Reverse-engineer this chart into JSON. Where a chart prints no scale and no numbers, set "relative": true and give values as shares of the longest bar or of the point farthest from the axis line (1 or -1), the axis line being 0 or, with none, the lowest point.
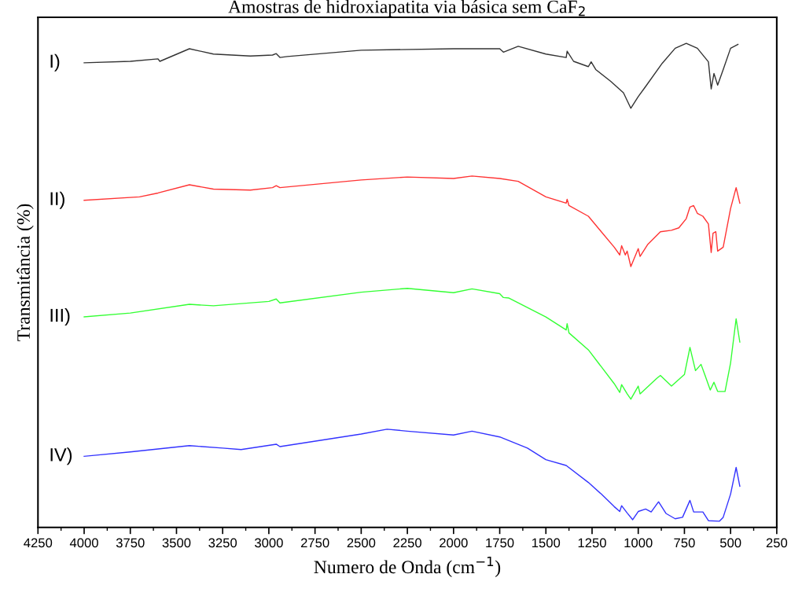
{
  "chart_data": {
    "type": "line",
    "title": "Amostras de hidroxiapatita via básica sem CaF$_{2}$",
    "xlabel": "Numero de Onda (cm$^{−1}$)",
    "ylabel": "Transmitância (%)",
    "relative": true,
    "xlim": [
      4250,
      250
    ],
    "xticks": [
      4250,
      4000,
      3750,
      3500,
      3250,
      3000,
      2750,
      2500,
      2250,
      2000,
      1750,
      1500,
      1250,
      1000,
      750,
      500,
      250
    ],
    "grid": false,
    "legend": false,
    "series": [
      {
        "name": "I)",
        "color": "#333333",
        "x": [
          4000,
          3750,
          3600,
          3590,
          3430,
          3300,
          3100,
          2980,
          2960,
          2940,
          2900,
          2500,
          2000,
          1750,
          1730,
          1650,
          1500,
          1390,
          1385,
          1350,
          1270,
          1255,
          1230,
          1150,
          1080,
          1040,
          1000,
          960,
          870,
          800,
          740,
          680,
          620,
          605,
          590,
          570,
          540,
          500,
          460
        ],
        "values": [
          0.96,
          0.963,
          0.968,
          0.963,
          0.989,
          0.978,
          0.974,
          0.976,
          0.979,
          0.971,
          0.973,
          0.986,
          0.989,
          0.989,
          0.982,
          0.994,
          0.978,
          0.971,
          0.984,
          0.963,
          0.952,
          0.962,
          0.946,
          0.922,
          0.898,
          0.866,
          0.89,
          0.911,
          0.959,
          0.99,
          1.0,
          0.99,
          0.962,
          0.906,
          0.938,
          0.914,
          0.946,
          0.99,
          0.998
        ]
      },
      {
        "name": "II)",
        "color": "#ff3333",
        "x": [
          4000,
          3700,
          3600,
          3430,
          3300,
          3100,
          2980,
          2960,
          2940,
          2500,
          2250,
          2000,
          1900,
          1750,
          1650,
          1500,
          1390,
          1385,
          1375,
          1270,
          1200,
          1130,
          1100,
          1090,
          1070,
          1060,
          1040,
          1000,
          990,
          950,
          880,
          820,
          780,
          740,
          720,
          700,
          680,
          650,
          620,
          605,
          595,
          580,
          570,
          540,
          500,
          470,
          450
        ],
        "values": [
          0.676,
          0.683,
          0.691,
          0.708,
          0.699,
          0.697,
          0.702,
          0.706,
          0.702,
          0.718,
          0.724,
          0.721,
          0.726,
          0.721,
          0.715,
          0.683,
          0.67,
          0.678,
          0.665,
          0.643,
          0.611,
          0.579,
          0.563,
          0.582,
          0.563,
          0.571,
          0.539,
          0.576,
          0.56,
          0.584,
          0.611,
          0.614,
          0.619,
          0.638,
          0.662,
          0.665,
          0.649,
          0.643,
          0.627,
          0.568,
          0.608,
          0.611,
          0.571,
          0.579,
          0.659,
          0.702,
          0.67
        ]
      },
      {
        "name": "III)",
        "color": "#33ff33",
        "x": [
          4000,
          3750,
          3430,
          3300,
          3000,
          2960,
          2940,
          2500,
          2250,
          2000,
          1900,
          1750,
          1730,
          1700,
          1500,
          1390,
          1385,
          1375,
          1270,
          1200,
          1130,
          1100,
          1090,
          1060,
          1040,
          1000,
          990,
          900,
          880,
          820,
          750,
          720,
          690,
          660,
          640,
          610,
          590,
          570,
          530,
          500,
          470,
          450
        ],
        "values": [
          0.435,
          0.443,
          0.461,
          0.458,
          0.467,
          0.472,
          0.464,
          0.486,
          0.494,
          0.485,
          0.493,
          0.483,
          0.475,
          0.474,
          0.435,
          0.408,
          0.421,
          0.402,
          0.367,
          0.332,
          0.297,
          0.279,
          0.295,
          0.276,
          0.265,
          0.292,
          0.276,
          0.308,
          0.314,
          0.292,
          0.316,
          0.372,
          0.324,
          0.337,
          0.316,
          0.284,
          0.3,
          0.281,
          0.281,
          0.34,
          0.431,
          0.383
        ]
      },
      {
        "name": "IV)",
        "color": "#3333ff",
        "x": [
          4000,
          3750,
          3430,
          3250,
          3150,
          2960,
          2940,
          2500,
          2360,
          2250,
          2000,
          1900,
          1750,
          1600,
          1500,
          1390,
          1270,
          1200,
          1130,
          1100,
          1090,
          1060,
          1030,
          1000,
          960,
          930,
          890,
          850,
          800,
          760,
          720,
          700,
          650,
          620,
          560,
          540,
          500,
          470,
          450
        ],
        "values": [
          0.147,
          0.156,
          0.169,
          0.164,
          0.161,
          0.172,
          0.167,
          0.193,
          0.203,
          0.199,
          0.191,
          0.199,
          0.187,
          0.164,
          0.14,
          0.128,
          0.093,
          0.069,
          0.043,
          0.033,
          0.045,
          0.03,
          0.016,
          0.033,
          0.038,
          0.032,
          0.053,
          0.029,
          0.018,
          0.021,
          0.056,
          0.032,
          0.032,
          0.014,
          0.013,
          0.021,
          0.069,
          0.124,
          0.085
        ]
      }
    ]
  }
}
